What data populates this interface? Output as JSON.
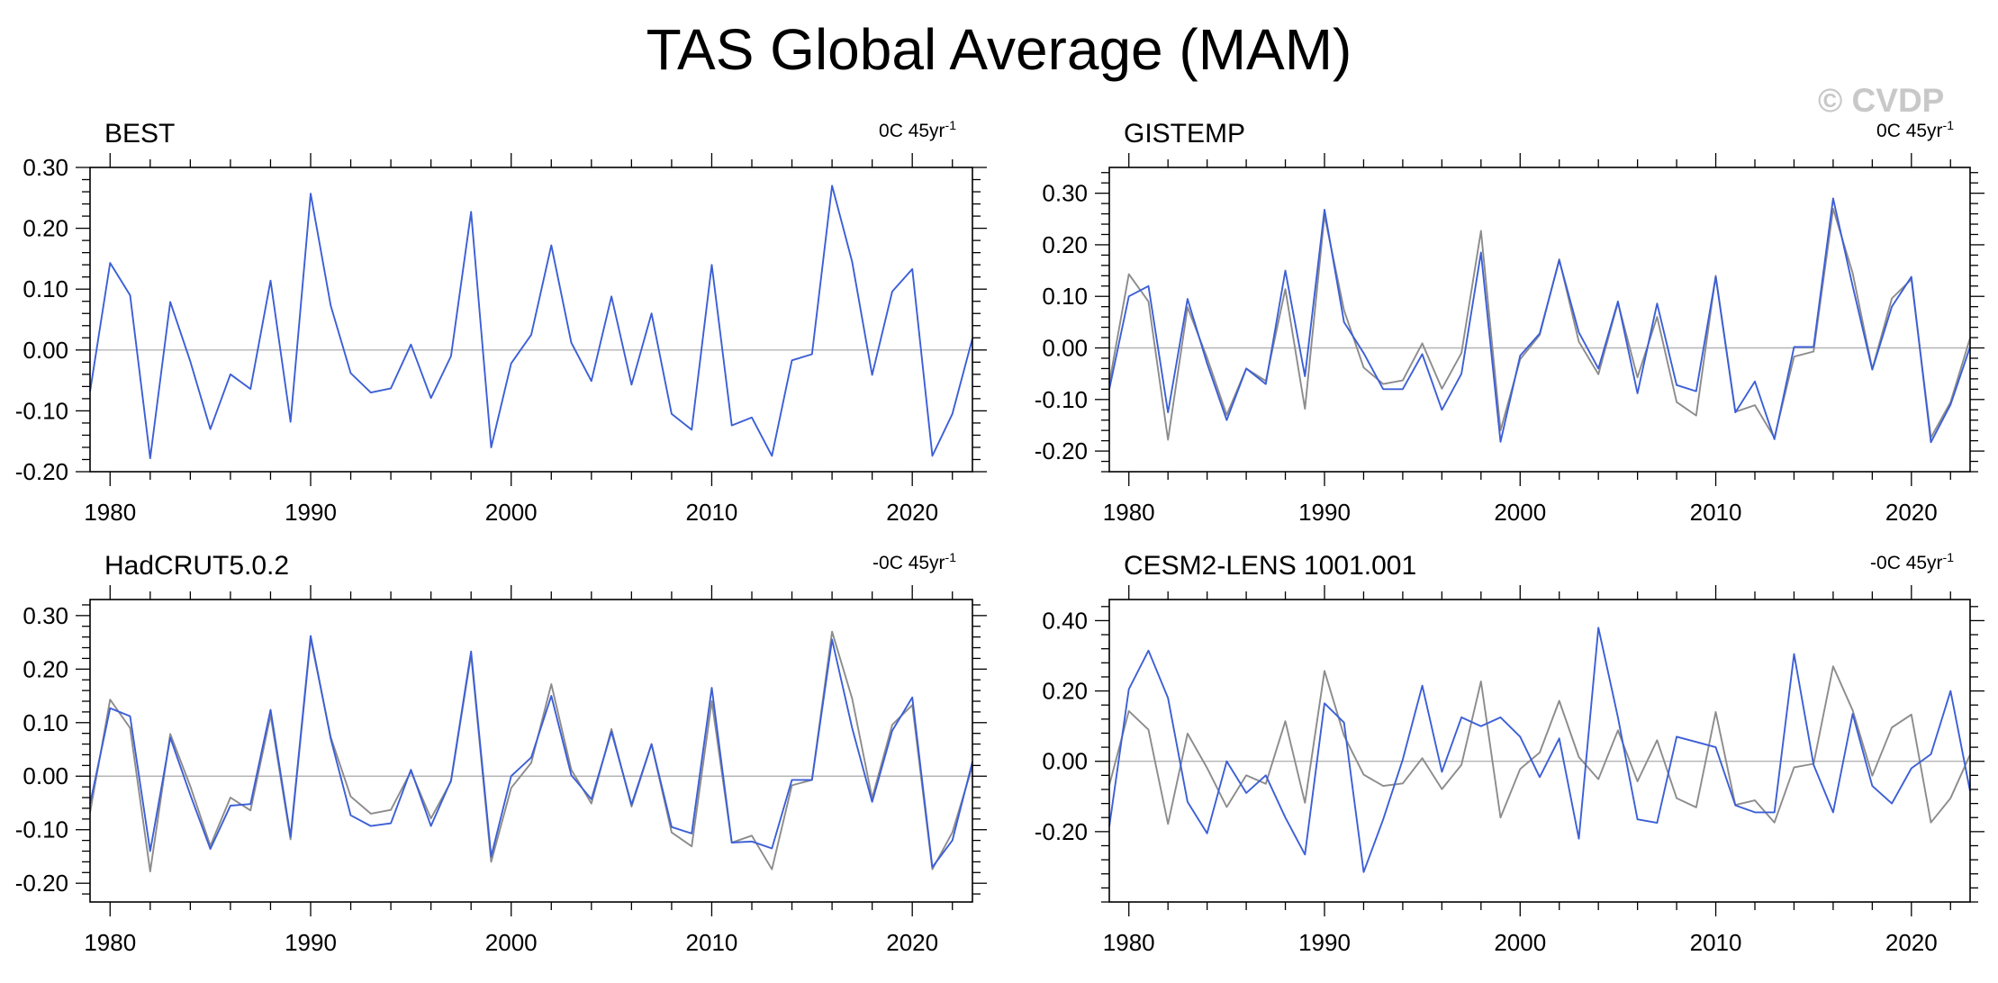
{
  "title": "TAS Global Average (MAM)",
  "watermark": "© CVDP",
  "colors": {
    "obs": "#8c8c8c",
    "model": "#3c5fd6",
    "zero": "#b4b4b4",
    "axis": "#000000"
  },
  "chart_data": [
    {
      "type": "line",
      "title": "BEST",
      "trend_label": "0C 45yr",
      "trend_exp": "-1",
      "xlim": [
        1979,
        2023
      ],
      "ylim": [
        -0.2,
        0.3
      ],
      "yticks": [
        -0.2,
        -0.1,
        0.0,
        0.1,
        0.2,
        0.3
      ],
      "ytick_labels": [
        "-0.20",
        "-0.10",
        "0.00",
        "0.10",
        "0.20",
        "0.30"
      ],
      "xticks": [
        1980,
        1990,
        2000,
        2010,
        2020
      ],
      "xtick_labels": [
        "1980",
        "1990",
        "2000",
        "2010",
        "2020"
      ],
      "x": [
        1979,
        1980,
        1981,
        1982,
        1983,
        1984,
        1985,
        1986,
        1987,
        1988,
        1989,
        1990,
        1991,
        1992,
        1993,
        1994,
        1995,
        1996,
        1997,
        1998,
        1999,
        2000,
        2001,
        2002,
        2003,
        2004,
        2005,
        2006,
        2007,
        2008,
        2009,
        2010,
        2011,
        2012,
        2013,
        2014,
        2015,
        2016,
        2017,
        2018,
        2019,
        2020,
        2021,
        2022,
        2023
      ],
      "series": [
        {
          "name": "BEST",
          "role": "model",
          "values": [
            -0.068,
            0.143,
            0.09,
            -0.178,
            0.079,
            -0.019,
            -0.13,
            -0.04,
            -0.064,
            0.114,
            -0.118,
            0.257,
            0.073,
            -0.038,
            -0.07,
            -0.063,
            0.009,
            -0.079,
            -0.01,
            0.227,
            -0.16,
            -0.022,
            0.025,
            0.172,
            0.012,
            -0.051,
            0.088,
            -0.057,
            0.06,
            -0.105,
            -0.131,
            0.14,
            -0.124,
            -0.111,
            -0.174,
            -0.017,
            -0.007,
            0.27,
            0.145,
            -0.041,
            0.096,
            0.133,
            -0.174,
            -0.105,
            0.019
          ]
        }
      ]
    },
    {
      "type": "line",
      "title": "GISTEMP",
      "trend_label": "0C 45yr",
      "trend_exp": "-1",
      "xlim": [
        1979,
        2023
      ],
      "ylim": [
        -0.24,
        0.35
      ],
      "yticks": [
        -0.2,
        -0.1,
        0.0,
        0.1,
        0.2,
        0.3
      ],
      "ytick_labels": [
        "-0.20",
        "-0.10",
        "0.00",
        "0.10",
        "0.20",
        "0.30"
      ],
      "xticks": [
        1980,
        1990,
        2000,
        2010,
        2020
      ],
      "xtick_labels": [
        "1980",
        "1990",
        "2000",
        "2010",
        "2020"
      ],
      "x": [
        1979,
        1980,
        1981,
        1982,
        1983,
        1984,
        1985,
        1986,
        1987,
        1988,
        1989,
        1990,
        1991,
        1992,
        1993,
        1994,
        1995,
        1996,
        1997,
        1998,
        1999,
        2000,
        2001,
        2002,
        2003,
        2004,
        2005,
        2006,
        2007,
        2008,
        2009,
        2010,
        2011,
        2012,
        2013,
        2014,
        2015,
        2016,
        2017,
        2018,
        2019,
        2020,
        2021,
        2022,
        2023
      ],
      "series": [
        {
          "name": "BEST",
          "role": "obs",
          "values": [
            -0.068,
            0.143,
            0.09,
            -0.178,
            0.079,
            -0.019,
            -0.13,
            -0.04,
            -0.064,
            0.114,
            -0.118,
            0.257,
            0.073,
            -0.038,
            -0.07,
            -0.063,
            0.009,
            -0.079,
            -0.01,
            0.227,
            -0.16,
            -0.022,
            0.025,
            0.172,
            0.012,
            -0.051,
            0.088,
            -0.057,
            0.06,
            -0.105,
            -0.131,
            0.14,
            -0.124,
            -0.111,
            -0.174,
            -0.017,
            -0.007,
            0.27,
            0.145,
            -0.041,
            0.096,
            0.133,
            -0.174,
            -0.105,
            0.019
          ]
        },
        {
          "name": "GISTEMP",
          "role": "model",
          "values": [
            -0.08,
            0.1,
            0.12,
            -0.125,
            0.095,
            -0.03,
            -0.14,
            -0.04,
            -0.07,
            0.15,
            -0.055,
            0.268,
            0.05,
            -0.01,
            -0.08,
            -0.08,
            -0.012,
            -0.12,
            -0.05,
            0.185,
            -0.182,
            -0.015,
            0.028,
            0.17,
            0.03,
            -0.04,
            0.09,
            -0.088,
            0.086,
            -0.072,
            -0.084,
            0.138,
            -0.125,
            -0.065,
            -0.177,
            0.002,
            0.002,
            0.29,
            0.12,
            -0.042,
            0.08,
            0.138,
            -0.183,
            -0.11,
            0.002
          ]
        }
      ]
    },
    {
      "type": "line",
      "title": "HadCRUT5.0.2",
      "trend_label": "-0C 45yr",
      "trend_exp": "-1",
      "xlim": [
        1979,
        2023
      ],
      "ylim": [
        -0.235,
        0.33
      ],
      "yticks": [
        -0.2,
        -0.1,
        0.0,
        0.1,
        0.2,
        0.3
      ],
      "ytick_labels": [
        "-0.20",
        "-0.10",
        "0.00",
        "0.10",
        "0.20",
        "0.30"
      ],
      "xticks": [
        1980,
        1990,
        2000,
        2010,
        2020
      ],
      "xtick_labels": [
        "1980",
        "1990",
        "2000",
        "2010",
        "2020"
      ],
      "x": [
        1979,
        1980,
        1981,
        1982,
        1983,
        1984,
        1985,
        1986,
        1987,
        1988,
        1989,
        1990,
        1991,
        1992,
        1993,
        1994,
        1995,
        1996,
        1997,
        1998,
        1999,
        2000,
        2001,
        2002,
        2003,
        2004,
        2005,
        2006,
        2007,
        2008,
        2009,
        2010,
        2011,
        2012,
        2013,
        2014,
        2015,
        2016,
        2017,
        2018,
        2019,
        2020,
        2021,
        2022,
        2023
      ],
      "series": [
        {
          "name": "BEST",
          "role": "obs",
          "values": [
            -0.068,
            0.143,
            0.09,
            -0.178,
            0.079,
            -0.019,
            -0.13,
            -0.04,
            -0.064,
            0.114,
            -0.118,
            0.257,
            0.073,
            -0.038,
            -0.07,
            -0.063,
            0.009,
            -0.079,
            -0.01,
            0.227,
            -0.16,
            -0.022,
            0.025,
            0.172,
            0.012,
            -0.051,
            0.088,
            -0.057,
            0.06,
            -0.105,
            -0.131,
            0.14,
            -0.124,
            -0.111,
            -0.174,
            -0.017,
            -0.007,
            0.27,
            0.145,
            -0.041,
            0.096,
            0.133,
            -0.174,
            -0.105,
            0.019
          ]
        },
        {
          "name": "HadCRUT5.0.2",
          "role": "model",
          "values": [
            -0.052,
            0.127,
            0.112,
            -0.14,
            0.072,
            -0.035,
            -0.136,
            -0.055,
            -0.052,
            0.124,
            -0.113,
            0.262,
            0.07,
            -0.073,
            -0.093,
            -0.088,
            0.012,
            -0.093,
            -0.008,
            0.233,
            -0.15,
            0.0,
            0.035,
            0.15,
            0.002,
            -0.043,
            0.083,
            -0.053,
            0.06,
            -0.095,
            -0.107,
            0.165,
            -0.124,
            -0.122,
            -0.135,
            -0.007,
            -0.007,
            0.255,
            0.09,
            -0.048,
            0.085,
            0.147,
            -0.17,
            -0.12,
            0.027
          ]
        }
      ]
    },
    {
      "type": "line",
      "title": "CESM2-LENS 1001.001",
      "trend_label": "-0C 45yr",
      "trend_exp": "-1",
      "xlim": [
        1979,
        2023
      ],
      "ylim": [
        -0.4,
        0.46
      ],
      "yticks": [
        -0.2,
        0.0,
        0.2,
        0.4
      ],
      "ytick_labels": [
        "-0.20",
        "0.00",
        "0.20",
        "0.40"
      ],
      "xticks": [
        1980,
        1990,
        2000,
        2010,
        2020
      ],
      "xtick_labels": [
        "1980",
        "1990",
        "2000",
        "2010",
        "2020"
      ],
      "x": [
        1979,
        1980,
        1981,
        1982,
        1983,
        1984,
        1985,
        1986,
        1987,
        1988,
        1989,
        1990,
        1991,
        1992,
        1993,
        1994,
        1995,
        1996,
        1997,
        1998,
        1999,
        2000,
        2001,
        2002,
        2003,
        2004,
        2005,
        2006,
        2007,
        2008,
        2009,
        2010,
        2011,
        2012,
        2013,
        2014,
        2015,
        2016,
        2017,
        2018,
        2019,
        2020,
        2021,
        2022,
        2023
      ],
      "series": [
        {
          "name": "BEST",
          "role": "obs",
          "values": [
            -0.068,
            0.143,
            0.09,
            -0.178,
            0.079,
            -0.019,
            -0.13,
            -0.04,
            -0.064,
            0.114,
            -0.118,
            0.257,
            0.073,
            -0.038,
            -0.07,
            -0.063,
            0.009,
            -0.079,
            -0.01,
            0.227,
            -0.16,
            -0.022,
            0.025,
            0.172,
            0.012,
            -0.051,
            0.088,
            -0.057,
            0.06,
            -0.105,
            -0.131,
            0.14,
            -0.124,
            -0.111,
            -0.174,
            -0.017,
            -0.007,
            0.27,
            0.145,
            -0.041,
            0.096,
            0.133,
            -0.174,
            -0.105,
            0.019
          ]
        },
        {
          "name": "CESM2-LENS 1001.001",
          "role": "model",
          "values": [
            -0.185,
            0.205,
            0.315,
            0.18,
            -0.115,
            -0.205,
            0.0,
            -0.09,
            -0.04,
            -0.16,
            -0.265,
            0.165,
            0.11,
            -0.315,
            -0.165,
            0.005,
            0.215,
            -0.03,
            0.125,
            0.1,
            0.125,
            0.07,
            -0.045,
            0.065,
            -0.22,
            0.38,
            0.125,
            -0.165,
            -0.175,
            0.07,
            0.055,
            0.04,
            -0.125,
            -0.145,
            -0.145,
            0.305,
            -0.01,
            -0.145,
            0.135,
            -0.07,
            -0.12,
            -0.02,
            0.02,
            0.2,
            -0.085
          ]
        }
      ]
    }
  ]
}
